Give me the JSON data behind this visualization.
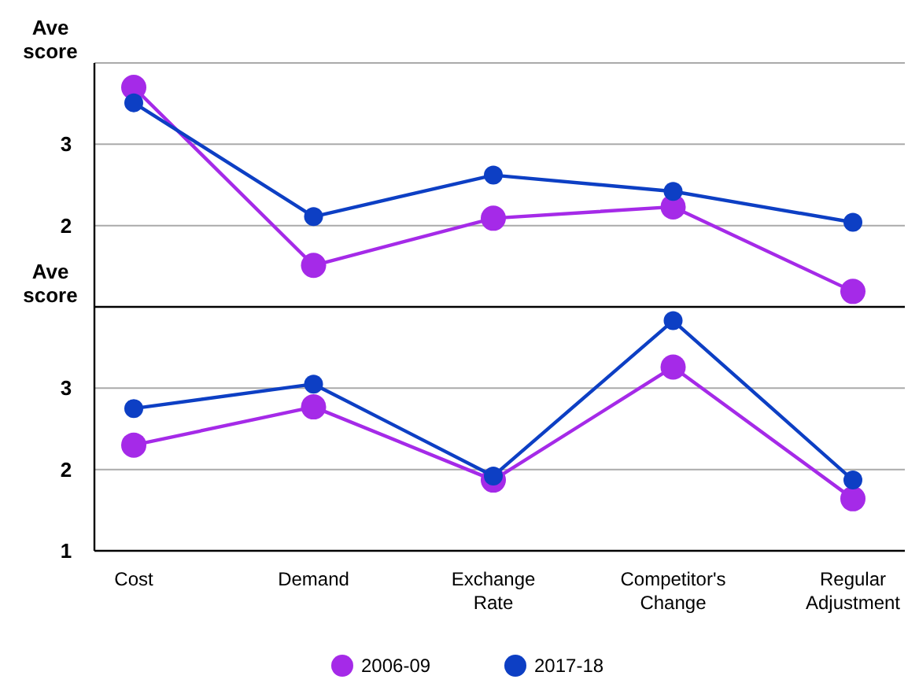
{
  "chart_data": [
    {
      "type": "line",
      "ylabel": "Ave score",
      "categories": [
        null,
        null,
        null,
        null,
        null
      ],
      "ylim": [
        1,
        4
      ],
      "yticks": [
        {
          "value": 1,
          "label": null
        },
        2,
        3,
        {
          "value": 4,
          "label": null
        }
      ],
      "grid": "y",
      "tick_labels": "y",
      "marker": "circle",
      "legend": "bottom",
      "series": [
        {
          "name": "2006-09",
          "color": "#a52ae8",
          "values": [
            3.7,
            1.51,
            2.09,
            2.23,
            1.19
          ]
        },
        {
          "name": "2017-18",
          "color": "#0d3fc4",
          "values": [
            3.51,
            2.11,
            2.62,
            2.42,
            2.04
          ]
        }
      ]
    },
    {
      "type": "line",
      "ylabel": "Ave score",
      "categories": [
        "Cost",
        "Demand",
        "Exchange Rate",
        "Competitor's Change",
        "Regular Adjustment"
      ],
      "ylim": [
        1,
        4
      ],
      "yticks": [
        1,
        2,
        3
      ],
      "grid": "y",
      "marker": "circle",
      "series": [
        {
          "color": "#a52ae8",
          "values": [
            2.3,
            2.77,
            1.87,
            3.26,
            1.64
          ]
        },
        {
          "color": "#0d3fc4",
          "values": [
            2.75,
            3.05,
            1.92,
            3.83,
            1.87
          ]
        }
      ]
    }
  ]
}
